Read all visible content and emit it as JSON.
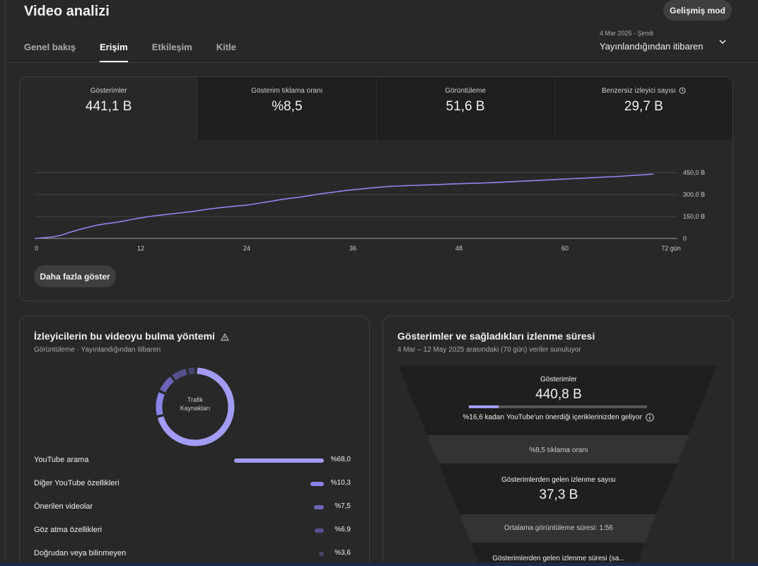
{
  "header": {
    "title": "Video analizi",
    "advanced_mode": "Gelişmiş mod",
    "date_range_small": "4 Mar 2025 - Şimdi",
    "date_range_main": "Yayınlandığından itibaren"
  },
  "tabs": [
    {
      "label": "Genel bakış",
      "active": false
    },
    {
      "label": "Erişim",
      "active": true
    },
    {
      "label": "Etkileşim",
      "active": false
    },
    {
      "label": "Kitle",
      "active": false
    }
  ],
  "metrics": [
    {
      "label": "Gösterimler",
      "value": "441,1 B"
    },
    {
      "label": "Gösterim tıklama oranı",
      "value": "%8,5"
    },
    {
      "label": "Görüntüleme",
      "value": "51,6 B"
    },
    {
      "label": "Benzersiz izleyici sayısı",
      "value": "29,7 B"
    }
  ],
  "chart_data": {
    "type": "line",
    "x_ticks": [
      "0",
      "12",
      "24",
      "36",
      "48",
      "60",
      "72 gün"
    ],
    "x_tick_values": [
      0,
      12,
      24,
      36,
      48,
      60,
      72
    ],
    "y_ticks": [
      "0",
      "150,0 B",
      "300,0 B",
      "450,0 B"
    ],
    "y_tick_values": [
      0,
      150,
      300,
      450
    ],
    "ylim": [
      0,
      450
    ],
    "xlim": [
      0,
      72
    ],
    "color": "#8c85f0",
    "series": [
      {
        "x": [
          0,
          1,
          2,
          3,
          4,
          5,
          6,
          7,
          8,
          9,
          10,
          11,
          12,
          13,
          14,
          15,
          16,
          17,
          18,
          19,
          20,
          21,
          22,
          23,
          24,
          25,
          26,
          27,
          28,
          29,
          30,
          31,
          32,
          33,
          34,
          35,
          36,
          37,
          38,
          39,
          40,
          41,
          42,
          43,
          44,
          45,
          46,
          47,
          48,
          49,
          50,
          51,
          52,
          53,
          54,
          55,
          56,
          57,
          58,
          59,
          60,
          61,
          62,
          63,
          64,
          65,
          66,
          67,
          68,
          69,
          70
        ],
        "values": [
          0,
          5,
          10,
          22,
          42,
          60,
          75,
          90,
          100,
          108,
          118,
          130,
          140,
          150,
          158,
          165,
          172,
          178,
          185,
          195,
          203,
          210,
          217,
          222,
          228,
          237,
          247,
          257,
          267,
          275,
          282,
          292,
          302,
          310,
          318,
          326,
          333,
          338,
          345,
          350,
          355,
          358,
          361,
          363,
          365,
          367,
          369,
          372,
          374,
          376,
          378,
          380,
          382,
          385,
          388,
          391,
          394,
          397,
          400,
          403,
          406,
          409,
          412,
          415,
          418,
          421,
          424,
          428,
          432,
          436,
          441
        ]
      }
    ]
  },
  "more_button": "Daha fazla göster",
  "sources": {
    "title": "İzleyicilerin bu videoyu bulma yöntemi",
    "subtitle": "Görüntüleme · Yayınlandığından itibaren",
    "donut_label": "Trafik Kaynakları",
    "items": [
      {
        "name": "YouTube arama",
        "pct": "%68,0",
        "value": 68.0,
        "color": "#a29cf4"
      },
      {
        "name": "Diğer YouTube özellikleri",
        "pct": "%10,3",
        "value": 10.3,
        "color": "#8a83e8"
      },
      {
        "name": "Önerilen videolar",
        "pct": "%7,5",
        "value": 7.5,
        "color": "#6c66b8"
      },
      {
        "name": "Göz atma özellikleri",
        "pct": "%6,9",
        "value": 6.9,
        "color": "#56528f"
      },
      {
        "name": "Doğrudan veya bilinmeyen",
        "pct": "%3,6",
        "value": 3.6,
        "color": "#45436a"
      }
    ]
  },
  "funnel": {
    "title": "Gösterimler ve sağladıkları izlenme süresi",
    "subtitle": "4 Mar – 12 May 2025 arasındaki (70 gün) veriler sunuluyor",
    "impressions_label": "Gösterimler",
    "impressions_value": "440,8 B",
    "recommended_fraction": 0.166,
    "recommended_text": "%16,6 kadarı YouTube'un önerdiği içeriklerinizden geliyor",
    "ctr_text": "%8,5 tıklama oranı",
    "views_label": "Gösterimlerden gelen izlenme sayısı",
    "views_value": "37,3 B",
    "avg_duration": "Ortalama görüntüleme süresi: 1:56",
    "watch_time_label": "Gösterimlerden gelen izlenme süresi (sa..."
  }
}
